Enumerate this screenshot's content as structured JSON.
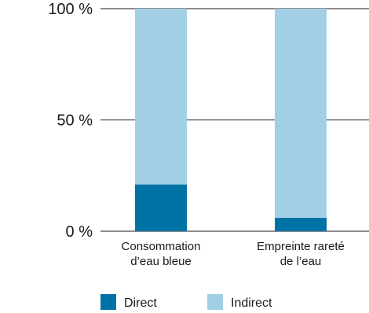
{
  "chart_data": {
    "type": "bar",
    "stacked": true,
    "categories": [
      [
        "Consommation",
        "d’eau bleue"
      ],
      [
        "Empreinte rareté",
        "de l’eau"
      ]
    ],
    "series": [
      {
        "name": "Direct",
        "values": [
          21,
          6
        ],
        "color": "#0072a3"
      },
      {
        "name": "Indirect",
        "values": [
          79,
          94
        ],
        "color": "#a3cfe6"
      }
    ],
    "ylim": [
      0,
      100
    ],
    "yticks": [
      {
        "value": 0,
        "label": "0 %"
      },
      {
        "value": 50,
        "label": "50 %"
      },
      {
        "value": 100,
        "label": "100 %"
      }
    ],
    "grid": true,
    "legend": "bottom"
  }
}
